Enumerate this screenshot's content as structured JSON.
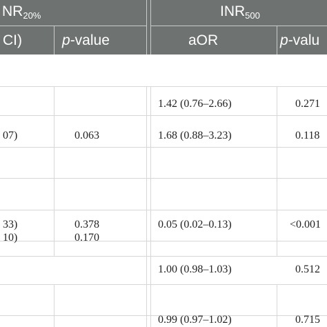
{
  "header": {
    "group1": {
      "prefix": "NR",
      "subscript": "20%"
    },
    "group2": {
      "prefix": "INR",
      "subscript": "500"
    },
    "col_ci_fragment": "CI)",
    "col_pvalue_italic": "p",
    "col_pvalue_rest": "-value",
    "col_aor": "aOR",
    "col_pvalue2_italic": "p",
    "col_pvalue2_rest": "-valu"
  },
  "rows": [
    {
      "c1": "",
      "c2": "",
      "c3": "1.42 (0.76–2.66)",
      "c4": "0.271"
    },
    {
      "c1": "07)",
      "c2": "0.063",
      "c3": "1.68 (0.88–3.23)",
      "c4": "0.118"
    },
    {
      "c1": "",
      "c2": "",
      "c3": "",
      "c4": ""
    },
    {
      "c1": "",
      "c2": "",
      "c3": "",
      "c4": ""
    },
    {
      "c1": "33)",
      "c2": "0.378",
      "c3": "0.05 (0.02–0.13)",
      "c4": "<0.001"
    },
    {
      "c1": "10)",
      "c2": "0.170",
      "c3": "",
      "c4": ""
    },
    {
      "c1": "",
      "c2": "",
      "c3": "1.00 (0.98–1.03)",
      "c4": "0.512"
    },
    {
      "c1": "",
      "c2": "",
      "c3": "0.99 (0.97–1.02)",
      "c4": "0.715"
    }
  ]
}
